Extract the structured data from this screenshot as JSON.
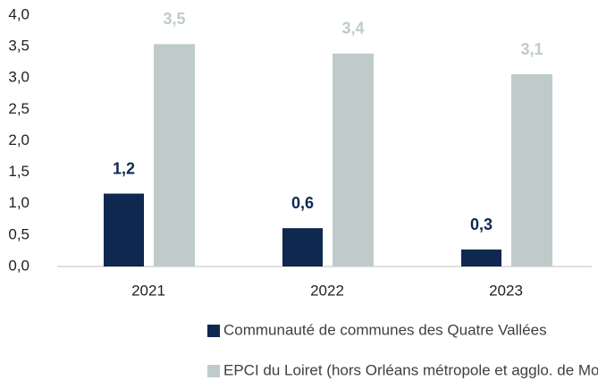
{
  "chart_data": {
    "type": "bar",
    "categories": [
      "2021",
      "2022",
      "2023"
    ],
    "series": [
      {
        "name": "Communauté de communes des Quatre Vallées",
        "color": "#0e2850",
        "label_color": "#0e2850",
        "values": [
          1.16,
          0.61,
          0.27
        ],
        "value_labels": [
          "1,2",
          "0,6",
          "0,3"
        ]
      },
      {
        "name": "EPCI du Loiret (hors Orléans métropole et agglo. de Montargis)",
        "color": "#bfcbcb",
        "label_color": "#bfcbcb",
        "values": [
          3.54,
          3.39,
          3.06
        ],
        "value_labels": [
          "3,5",
          "3,4",
          "3,1"
        ]
      }
    ],
    "ylim": [
      0,
      4
    ],
    "yticks": [
      {
        "value": 0,
        "label": "0,0"
      },
      {
        "value": 0.5,
        "label": "0,5"
      },
      {
        "value": 1,
        "label": "1,0"
      },
      {
        "value": 1.5,
        "label": "1,5"
      },
      {
        "value": 2,
        "label": "2,0"
      },
      {
        "value": 2.5,
        "label": "2,5"
      },
      {
        "value": 3,
        "label": "3,0"
      },
      {
        "value": 3.5,
        "label": "3,5"
      },
      {
        "value": 4,
        "label": "4,0"
      }
    ],
    "grid": false
  }
}
